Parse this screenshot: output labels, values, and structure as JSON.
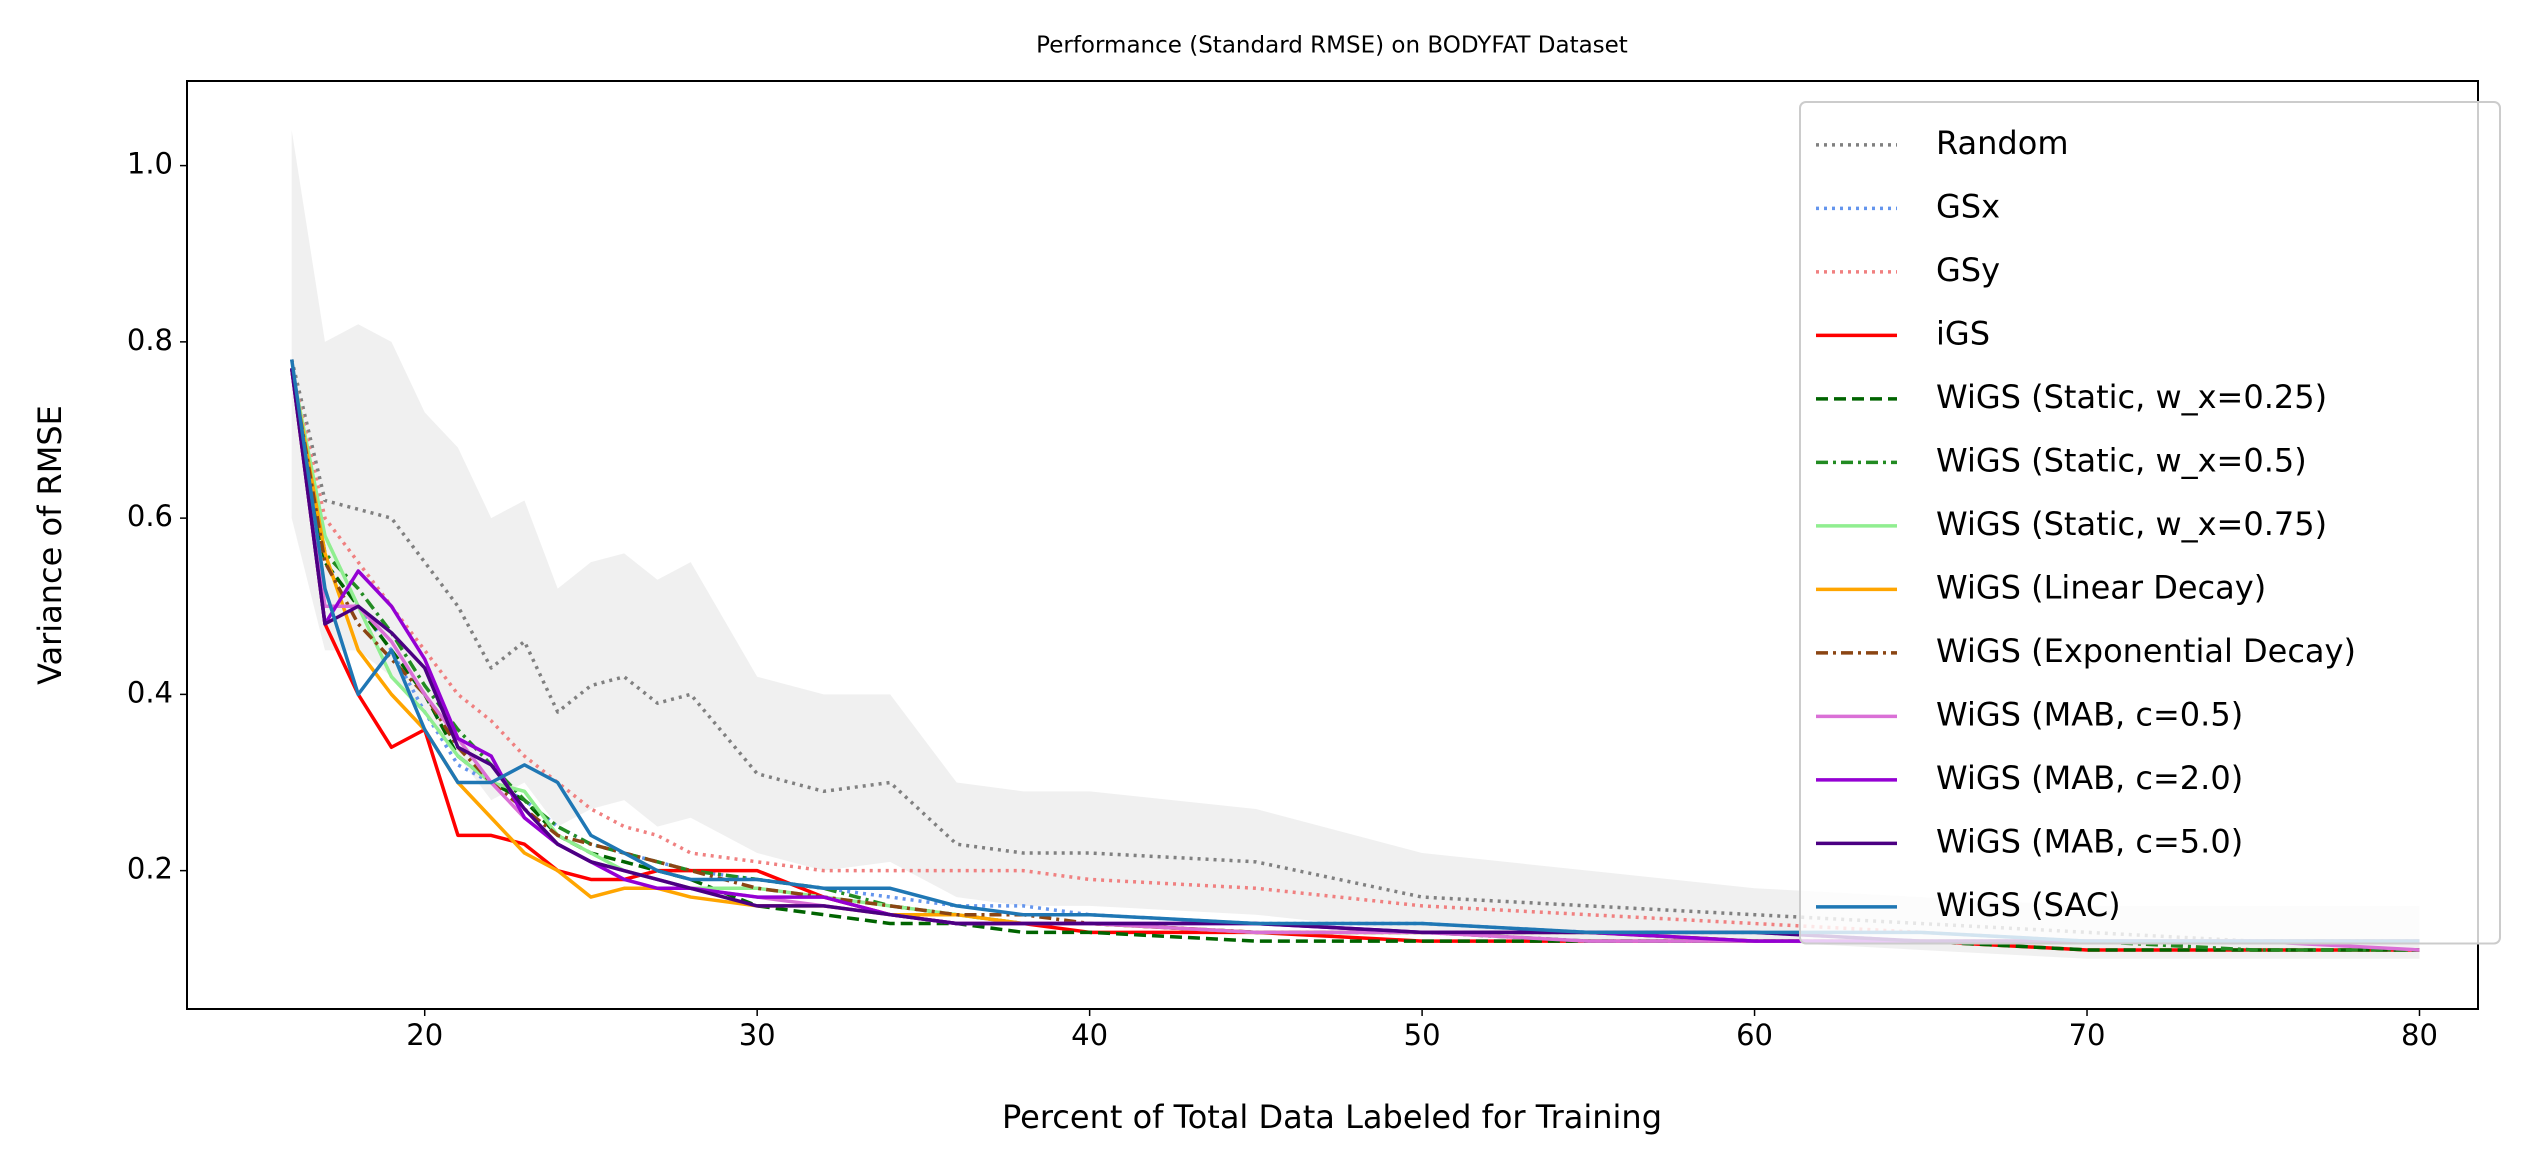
{
  "chart_data": {
    "type": "line",
    "title": "Performance (Standard RMSE) on BODYFAT Dataset",
    "x_label": "Percent of Total Data Labeled for Training",
    "y_label": "Variance of RMSE",
    "xlim": [
      12.85,
      81.76
    ],
    "ylim": [
      0.043,
      1.096
    ],
    "xticks": [
      20,
      30,
      40,
      50,
      60,
      70,
      80
    ],
    "yticks": [
      0.2,
      0.4,
      0.6,
      0.8,
      {
        "value": 1,
        "label": "1.0"
      }
    ],
    "legend": "upper right",
    "x": [
      16,
      17,
      18,
      19,
      20,
      21,
      22,
      23,
      24,
      25,
      26,
      27,
      28,
      30,
      32,
      34,
      36,
      38,
      40,
      45,
      50,
      55,
      60,
      65,
      70,
      75,
      80
    ],
    "series": [
      {
        "name": "Random",
        "color": "#808080",
        "style": "dotted",
        "values": [
          0.78,
          0.62,
          0.61,
          0.6,
          0.55,
          0.5,
          0.43,
          0.46,
          0.38,
          0.41,
          0.42,
          0.39,
          0.4,
          0.31,
          0.29,
          0.3,
          0.23,
          0.22,
          0.22,
          0.21,
          0.17,
          0.16,
          0.15,
          0.14,
          0.13,
          0.12,
          0.12
        ],
        "lower": [
          0.6,
          0.45,
          0.45,
          0.42,
          0.38,
          0.33,
          0.28,
          0.3,
          0.25,
          0.27,
          0.28,
          0.25,
          0.26,
          0.22,
          0.2,
          0.21,
          0.17,
          0.16,
          0.16,
          0.15,
          0.13,
          0.12,
          0.12,
          0.11,
          0.1,
          0.1,
          0.1
        ],
        "upper": [
          1.04,
          0.8,
          0.82,
          0.8,
          0.72,
          0.68,
          0.6,
          0.62,
          0.52,
          0.55,
          0.56,
          0.53,
          0.55,
          0.42,
          0.4,
          0.4,
          0.3,
          0.29,
          0.29,
          0.27,
          0.22,
          0.2,
          0.18,
          0.17,
          0.16,
          0.16,
          0.16
        ]
      },
      {
        "name": "GSx",
        "color": "#6495ED",
        "style": "dotted",
        "values": [
          0.77,
          0.55,
          0.5,
          0.45,
          0.38,
          0.32,
          0.3,
          0.28,
          0.25,
          0.23,
          0.22,
          0.21,
          0.2,
          0.19,
          0.18,
          0.17,
          0.16,
          0.16,
          0.15,
          0.14,
          0.14,
          0.13,
          0.13,
          0.12,
          0.12,
          0.12,
          0.12
        ]
      },
      {
        "name": "GSy",
        "color": "#F08080",
        "style": "dotted",
        "values": [
          0.77,
          0.6,
          0.55,
          0.5,
          0.45,
          0.4,
          0.37,
          0.33,
          0.3,
          0.27,
          0.25,
          0.24,
          0.22,
          0.21,
          0.2,
          0.2,
          0.2,
          0.2,
          0.19,
          0.18,
          0.16,
          0.15,
          0.14,
          0.13,
          0.12,
          0.12,
          0.12
        ]
      },
      {
        "name": "iGS",
        "color": "#FF0000",
        "style": "solid",
        "values": [
          0.77,
          0.48,
          0.4,
          0.34,
          0.36,
          0.24,
          0.24,
          0.23,
          0.2,
          0.19,
          0.19,
          0.2,
          0.2,
          0.2,
          0.17,
          0.15,
          0.14,
          0.14,
          0.13,
          0.13,
          0.12,
          0.12,
          0.12,
          0.12,
          0.11,
          0.11,
          0.11
        ]
      },
      {
        "name": "WiGS (Static, w_x=0.25)",
        "color": "#006400",
        "style": "dashed",
        "values": [
          0.77,
          0.55,
          0.5,
          0.45,
          0.4,
          0.33,
          0.3,
          0.28,
          0.24,
          0.22,
          0.21,
          0.2,
          0.19,
          0.16,
          0.15,
          0.14,
          0.14,
          0.13,
          0.13,
          0.12,
          0.12,
          0.12,
          0.12,
          0.12,
          0.11,
          0.11,
          0.11
        ]
      },
      {
        "name": "WiGS (Static, w_x=0.5)",
        "color": "#228B22",
        "style": "dashdot",
        "values": [
          0.77,
          0.56,
          0.52,
          0.47,
          0.41,
          0.36,
          0.32,
          0.28,
          0.25,
          0.23,
          0.22,
          0.21,
          0.2,
          0.19,
          0.18,
          0.16,
          0.15,
          0.14,
          0.14,
          0.13,
          0.13,
          0.12,
          0.12,
          0.12,
          0.12,
          0.11,
          0.11
        ]
      },
      {
        "name": "WiGS (Static, w_x=0.75)",
        "color": "#90EE90",
        "style": "solid",
        "values": [
          0.77,
          0.58,
          0.5,
          0.42,
          0.38,
          0.33,
          0.3,
          0.29,
          0.24,
          0.22,
          0.2,
          0.19,
          0.18,
          0.18,
          0.17,
          0.16,
          0.15,
          0.14,
          0.14,
          0.13,
          0.13,
          0.13,
          0.12,
          0.12,
          0.12,
          0.12,
          0.12
        ]
      },
      {
        "name": "WiGS (Linear Decay)",
        "color": "#FFA500",
        "style": "solid",
        "values": [
          0.77,
          0.56,
          0.45,
          0.4,
          0.36,
          0.3,
          0.26,
          0.22,
          0.2,
          0.17,
          0.18,
          0.18,
          0.17,
          0.16,
          0.16,
          0.15,
          0.15,
          0.14,
          0.14,
          0.13,
          0.13,
          0.13,
          0.12,
          0.12,
          0.12,
          0.12,
          0.12
        ]
      },
      {
        "name": "WiGS (Exponential Decay)",
        "color": "#8B4513",
        "style": "dashdot",
        "values": [
          0.77,
          0.55,
          0.48,
          0.44,
          0.4,
          0.34,
          0.3,
          0.27,
          0.24,
          0.23,
          0.22,
          0.21,
          0.2,
          0.18,
          0.17,
          0.16,
          0.15,
          0.15,
          0.14,
          0.13,
          0.13,
          0.13,
          0.12,
          0.12,
          0.12,
          0.12,
          0.12
        ]
      },
      {
        "name": "WiGS (MAB, c=0.5)",
        "color": "#DA70D6",
        "style": "solid",
        "values": [
          0.77,
          0.5,
          0.5,
          0.46,
          0.4,
          0.35,
          0.3,
          0.26,
          0.23,
          0.21,
          0.2,
          0.19,
          0.18,
          0.17,
          0.16,
          0.15,
          0.14,
          0.14,
          0.14,
          0.13,
          0.13,
          0.12,
          0.12,
          0.12,
          0.12,
          0.12,
          0.11
        ]
      },
      {
        "name": "WiGS (MAB, c=2.0)",
        "color": "#9400D3",
        "style": "solid",
        "values": [
          0.77,
          0.48,
          0.54,
          0.5,
          0.44,
          0.35,
          0.33,
          0.26,
          0.23,
          0.21,
          0.19,
          0.18,
          0.18,
          0.17,
          0.17,
          0.15,
          0.14,
          0.14,
          0.14,
          0.14,
          0.13,
          0.13,
          0.12,
          0.12,
          0.12,
          0.12,
          0.12
        ]
      },
      {
        "name": "WiGS (MAB, c=5.0)",
        "color": "#4B0082",
        "style": "solid",
        "values": [
          0.77,
          0.48,
          0.5,
          0.47,
          0.43,
          0.34,
          0.32,
          0.27,
          0.23,
          0.21,
          0.2,
          0.19,
          0.18,
          0.16,
          0.16,
          0.15,
          0.14,
          0.14,
          0.14,
          0.14,
          0.13,
          0.13,
          0.13,
          0.12,
          0.12,
          0.12,
          0.12
        ]
      },
      {
        "name": "WiGS (SAC)",
        "color": "#1F77B4",
        "style": "solid",
        "values": [
          0.78,
          0.52,
          0.4,
          0.45,
          0.36,
          0.3,
          0.3,
          0.32,
          0.3,
          0.24,
          0.22,
          0.2,
          0.19,
          0.19,
          0.18,
          0.18,
          0.16,
          0.15,
          0.15,
          0.14,
          0.14,
          0.13,
          0.13,
          0.13,
          0.12,
          0.12,
          0.12
        ]
      }
    ]
  }
}
